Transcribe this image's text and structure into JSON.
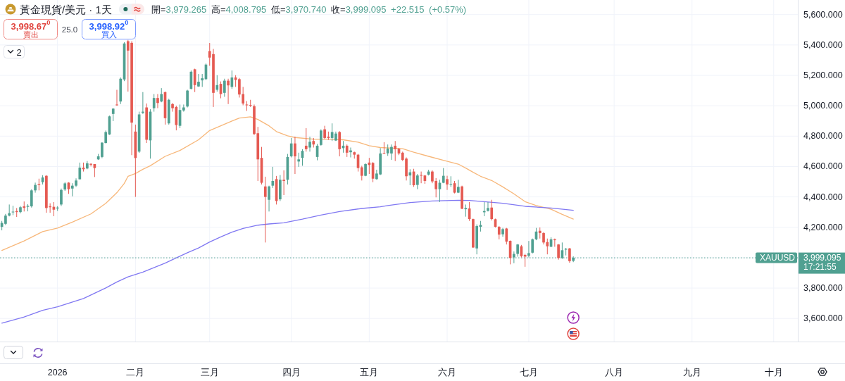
{
  "chart_data": {
    "type": "candlestick",
    "title": "黃金現貨/美元 · 1天",
    "categories": [
      null,
      null,
      null,
      null,
      null,
      null,
      null,
      null,
      null,
      null,
      null,
      null,
      null,
      null,
      null,
      "2026",
      null,
      null,
      null,
      null,
      null,
      null,
      null,
      null,
      null,
      null,
      null,
      null,
      null,
      null,
      null,
      null,
      null,
      null,
      null,
      null,
      "二月",
      null,
      null,
      null,
      null,
      null,
      null,
      null,
      null,
      null,
      null,
      null,
      null,
      null,
      null,
      null,
      null,
      null,
      null,
      null,
      "三月",
      null,
      null,
      null,
      null,
      null,
      null,
      null,
      null,
      null,
      null,
      null,
      null,
      null,
      null,
      null,
      null,
      null,
      null,
      null,
      null,
      null,
      "四月",
      null,
      null,
      null,
      null,
      null,
      null,
      null,
      null,
      null,
      null,
      null,
      null,
      null,
      null,
      null,
      null,
      null,
      null,
      null,
      null,
      "五月",
      null,
      null,
      null,
      null,
      null,
      null,
      null,
      null,
      null,
      null,
      null,
      null,
      null,
      null,
      null,
      null,
      null,
      null,
      null,
      null,
      "六月",
      null,
      null,
      null,
      null,
      null,
      null,
      null,
      null,
      null,
      null,
      null,
      null,
      null,
      null,
      null,
      null,
      null,
      null,
      null,
      null,
      null,
      "七月",
      null,
      null,
      null,
      null,
      null,
      null,
      null,
      null,
      null,
      null,
      null,
      null,
      null,
      null,
      null,
      null,
      null,
      null,
      null,
      null,
      null,
      null,
      "八月",
      null,
      null,
      null,
      null,
      null,
      null,
      null,
      null,
      null,
      null,
      null,
      null,
      null,
      null,
      null,
      null,
      null,
      null,
      null,
      null,
      "九月",
      null,
      null,
      null,
      null,
      null,
      null,
      null,
      null,
      null,
      null,
      null,
      null,
      null,
      null,
      null,
      null,
      null,
      null,
      null,
      null,
      null,
      "十月",
      null,
      null,
      null,
      null,
      null,
      null
    ],
    "ohlc": [
      [
        4203,
        4242,
        4180,
        4229
      ],
      [
        4223,
        4288,
        4215,
        4277
      ],
      [
        4277,
        4350,
        4272,
        4293
      ],
      [
        4300,
        4342,
        4280,
        4303
      ],
      [
        4307,
        4327,
        4268,
        4300
      ],
      [
        4300,
        4340,
        4292,
        4332
      ],
      [
        4338,
        4370,
        4304,
        4328
      ],
      [
        4335,
        4352,
        4305,
        4342
      ],
      [
        4338,
        4450,
        4330,
        4443
      ],
      [
        4443,
        4494,
        4428,
        4479
      ],
      [
        4485,
        4520,
        4443,
        4479
      ],
      [
        4497,
        4543,
        4482,
        4528
      ],
      [
        4539,
        4543,
        4296,
        4327
      ],
      [
        4338,
        4358,
        4296,
        4332
      ],
      [
        4335,
        4366,
        4273,
        4316
      ],
      [
        4324,
        4339,
        4308,
        4330
      ],
      [
        4350,
        4455,
        4340,
        4446
      ],
      [
        4449,
        4497,
        4440,
        4489
      ],
      [
        4494,
        4497,
        4420,
        4451
      ],
      [
        4455,
        4490,
        4404,
        4474
      ],
      [
        4474,
        4522,
        4466,
        4508
      ],
      [
        4516,
        4626,
        4516,
        4593
      ],
      [
        4593,
        4626,
        4567,
        4582
      ],
      [
        4587,
        4636,
        4582,
        4621
      ],
      [
        4618,
        4621,
        4601,
        4612
      ],
      [
        4616,
        4616,
        4531,
        4590
      ],
      [
        4647,
        4683,
        4643,
        4667
      ],
      [
        4663,
        4760,
        4655,
        4757
      ],
      [
        4755,
        4837,
        4752,
        4827
      ],
      [
        4811,
        4935,
        4808,
        4930
      ],
      [
        4946,
        4984,
        4899,
        4981
      ],
      [
        5008,
        5105,
        5000,
        5003
      ],
      [
        5028,
        5186,
        5011,
        5178
      ],
      [
        5173,
        5418,
        5162,
        5410
      ],
      [
        5425,
        5433,
        5093,
        5363
      ],
      [
        5414,
        5425,
        4675,
        4889
      ],
      [
        4830,
        4876,
        4400,
        4656
      ],
      [
        4698,
        4961,
        4690,
        4943
      ],
      [
        4953,
        5090,
        4946,
        4961
      ],
      [
        4989,
        5015,
        4755,
        4776
      ],
      [
        4772,
        4977,
        4652,
        4961
      ],
      [
        4984,
        5077,
        4961,
        5051
      ],
      [
        5051,
        5077,
        4984,
        5018
      ],
      [
        5028,
        5116,
        5023,
        5077
      ],
      [
        5090,
        5093,
        4876,
        4918
      ],
      [
        4884,
        5046,
        4876,
        5039
      ],
      [
        5011,
        5018,
        4961,
        4984
      ],
      [
        4992,
        5000,
        4838,
        4873
      ],
      [
        4868,
        5008,
        4853,
        4972
      ],
      [
        4969,
        5008,
        4961,
        4989
      ],
      [
        4995,
        5105,
        4989,
        5100
      ],
      [
        5111,
        5232,
        5108,
        5224
      ],
      [
        5240,
        5244,
        5090,
        5136
      ],
      [
        5127,
        5209,
        5124,
        5158
      ],
      [
        5167,
        5209,
        5124,
        5181
      ],
      [
        5175,
        5278,
        5170,
        5271
      ],
      [
        5360,
        5413,
        5263,
        5317
      ],
      [
        5340,
        5374,
        4992,
        5085
      ],
      [
        5105,
        5201,
        5093,
        5136
      ],
      [
        5144,
        5160,
        5049,
        5077
      ],
      [
        5085,
        5178,
        5059,
        5165
      ],
      [
        5165,
        5178,
        5011,
        5134
      ],
      [
        5124,
        5232,
        5111,
        5186
      ],
      [
        5186,
        5201,
        5124,
        5170
      ],
      [
        5175,
        5183,
        5054,
        5074
      ],
      [
        5077,
        5124,
        5003,
        5015
      ],
      [
        5008,
        5031,
        4966,
        5003
      ],
      [
        5005,
        5039,
        4992,
        5000
      ],
      [
        4997,
        5008,
        4807,
        4814
      ],
      [
        4819,
        4861,
        4505,
        4647
      ],
      [
        4657,
        4729,
        4482,
        4493
      ],
      [
        4469,
        4533,
        4100,
        4400
      ],
      [
        4381,
        4474,
        4304,
        4469
      ],
      [
        4474,
        4598,
        4459,
        4505
      ],
      [
        4517,
        4538,
        4350,
        4373
      ],
      [
        4384,
        4544,
        4373,
        4513
      ],
      [
        4513,
        4575,
        4412,
        4505
      ],
      [
        4513,
        4683,
        4482,
        4663
      ],
      [
        4667,
        4788,
        4660,
        4752
      ],
      [
        4752,
        4796,
        4551,
        4667
      ],
      [
        4633,
        4691,
        4598,
        4647
      ],
      [
        4657,
        4714,
        4605,
        4703
      ],
      [
        4737,
        4853,
        4698,
        4714
      ],
      [
        4725,
        4796,
        4698,
        4763
      ],
      [
        4768,
        4788,
        4725,
        4745
      ],
      [
        4663,
        4749,
        4641,
        4737
      ],
      [
        4742,
        4845,
        4737,
        4837
      ],
      [
        4845,
        4868,
        4780,
        4788
      ],
      [
        4796,
        4830,
        4775,
        4788
      ],
      [
        4788,
        4884,
        4768,
        4827
      ],
      [
        4771,
        4830,
        4768,
        4817
      ],
      [
        4827,
        4833,
        4667,
        4714
      ],
      [
        4721,
        4768,
        4691,
        4737
      ],
      [
        4737,
        4745,
        4663,
        4691
      ],
      [
        4694,
        4725,
        4660,
        4706
      ],
      [
        4694,
        4698,
        4652,
        4678
      ],
      [
        4678,
        4683,
        4567,
        4590
      ],
      [
        4595,
        4605,
        4508,
        4539
      ],
      [
        4539,
        4621,
        4536,
        4616
      ],
      [
        4626,
        4657,
        4551,
        4610
      ],
      [
        4624,
        4629,
        4497,
        4520
      ],
      [
        4517,
        4579,
        4513,
        4554
      ],
      [
        4548,
        4721,
        4544,
        4686
      ],
      [
        4690,
        4760,
        4683,
        4686
      ],
      [
        4687,
        4745,
        4670,
        4718
      ],
      [
        4686,
        4745,
        4644,
        4729
      ],
      [
        4737,
        4768,
        4636,
        4714
      ],
      [
        4717,
        4722,
        4675,
        4686
      ],
      [
        4691,
        4698,
        4636,
        4644
      ],
      [
        4652,
        4660,
        4508,
        4536
      ],
      [
        4541,
        4582,
        4477,
        4562
      ],
      [
        4567,
        4585,
        4466,
        4477
      ],
      [
        4479,
        4551,
        4451,
        4541
      ],
      [
        4544,
        4567,
        4490,
        4541
      ],
      [
        4541,
        4544,
        4486,
        4505
      ],
      [
        4547,
        4579,
        4541,
        4567
      ],
      [
        4567,
        4575,
        4490,
        4502
      ],
      [
        4505,
        4524,
        4397,
        4451
      ],
      [
        4451,
        4513,
        4366,
        4493
      ],
      [
        4493,
        4590,
        4490,
        4539
      ],
      [
        4517,
        4539,
        4446,
        4482
      ],
      [
        4482,
        4536,
        4466,
        4486
      ],
      [
        4490,
        4505,
        4423,
        4428
      ],
      [
        4428,
        4513,
        4425,
        4466
      ],
      [
        4469,
        4474,
        4319,
        4322
      ],
      [
        4319,
        4350,
        4270,
        4327
      ],
      [
        4324,
        4366,
        4242,
        4254
      ],
      [
        4254,
        4257,
        4064,
        4067
      ],
      [
        4061,
        4219,
        4022,
        4208
      ],
      [
        4203,
        4242,
        4172,
        4216
      ],
      [
        4299,
        4366,
        4273,
        4307
      ],
      [
        4308,
        4366,
        4304,
        4327
      ],
      [
        4330,
        4381,
        4245,
        4254
      ],
      [
        4253,
        4257,
        4199,
        4203
      ],
      [
        4203,
        4208,
        4121,
        4152
      ],
      [
        4154,
        4196,
        4138,
        4188
      ],
      [
        4192,
        4196,
        4087,
        4106
      ],
      [
        4111,
        4113,
        3956,
        3998
      ],
      [
        4002,
        4041,
        3964,
        4025
      ],
      [
        4025,
        4090,
        4007,
        4087
      ],
      [
        4075,
        4084,
        4002,
        4010
      ],
      [
        4018,
        4025,
        3940,
        4007
      ],
      [
        4013,
        4110,
        4002,
        4030
      ],
      [
        4033,
        4126,
        4028,
        4121
      ],
      [
        4121,
        4196,
        4115,
        4172
      ],
      [
        4177,
        4199,
        4126,
        4162
      ],
      [
        4162,
        4168,
        4087,
        4100
      ],
      [
        4103,
        4126,
        4022,
        4075
      ],
      [
        4072,
        4134,
        4069,
        4121
      ],
      [
        4121,
        4126,
        4072,
        4115
      ],
      [
        4087,
        4090,
        3987,
        3998
      ],
      [
        3998,
        4100,
        3992,
        4049
      ],
      [
        4053,
        4064,
        4015,
        4059
      ],
      [
        4061,
        4064,
        3967,
        3977
      ],
      [
        3979.265,
        4008.795,
        3970.74,
        3999.095
      ],
      null,
      null,
      null,
      null,
      null,
      null,
      null,
      null,
      null,
      null,
      null,
      null,
      null,
      null,
      null,
      null,
      null,
      null,
      null,
      null,
      null,
      null,
      null,
      null,
      null,
      null,
      null,
      null,
      null,
      null,
      null,
      null,
      null,
      null,
      null,
      null,
      null,
      null,
      null,
      null,
      null,
      null,
      null,
      null,
      null,
      null,
      null,
      null,
      null,
      null,
      null,
      null,
      null,
      null,
      null,
      null,
      null,
      null,
      null,
      null
    ],
    "colors": [
      "#50a091",
      "#50a091",
      "#50a091",
      "#50a091",
      "#e55a52",
      "#50a091",
      "#e55a52",
      "#50a091",
      "#50a091",
      "#50a091",
      "#e55a52",
      "#50a091",
      "#e55a52",
      "#e55a52",
      "#e55a52",
      "#50a091",
      "#50a091",
      "#50a091",
      "#e55a52",
      "#50a091",
      "#50a091",
      "#50a091",
      "#e55a52",
      "#50a091",
      "#e55a52",
      "#e55a52",
      "#50a091",
      "#50a091",
      "#50a091",
      "#50a091",
      "#50a091",
      "#e55a52",
      "#50a091",
      "#50a091",
      "#e55a52",
      "#e55a52",
      "#e55a52",
      "#50a091",
      "#50a091",
      "#e55a52",
      "#50a091",
      "#50a091",
      "#e55a52",
      "#50a091",
      "#e55a52",
      "#50a091",
      "#e55a52",
      "#e55a52",
      "#50a091",
      "#50a091",
      "#50a091",
      "#50a091",
      "#e55a52",
      "#50a091",
      "#50a091",
      "#50a091",
      "#e55a52",
      "#e55a52",
      "#50a091",
      "#e55a52",
      "#50a091",
      "#e55a52",
      "#50a091",
      "#e55a52",
      "#e55a52",
      "#e55a52",
      "#e55a52",
      "#e55a52",
      "#e55a52",
      "#e55a52",
      "#e55a52",
      "#e55a52",
      "#50a091",
      "#50a091",
      "#e55a52",
      "#50a091",
      "#e55a52",
      "#50a091",
      "#50a091",
      "#e55a52",
      "#50a091",
      "#50a091",
      "#e55a52",
      "#50a091",
      "#e55a52",
      "#50a091",
      "#50a091",
      "#e55a52",
      "#e55a52",
      "#50a091",
      "#50a091",
      "#e55a52",
      "#50a091",
      "#e55a52",
      "#50a091",
      "#e55a52",
      "#e55a52",
      "#e55a52",
      "#50a091",
      "#e55a52",
      "#e55a52",
      "#50a091",
      "#50a091",
      "#e55a52",
      "#50a091",
      "#50a091",
      "#e55a52",
      "#e55a52",
      "#e55a52",
      "#e55a52",
      "#50a091",
      "#e55a52",
      "#50a091",
      "#e55a52",
      "#e55a52",
      "#50a091",
      "#e55a52",
      "#e55a52",
      "#50a091",
      "#50a091",
      "#e55a52",
      "#50a091",
      "#e55a52",
      "#50a091",
      "#e55a52",
      "#50a091",
      "#e55a52",
      "#e55a52",
      "#50a091",
      "#50a091",
      "#50a091",
      "#50a091",
      "#e55a52",
      "#e55a52",
      "#e55a52",
      "#50a091",
      "#e55a52",
      "#e55a52",
      "#50a091",
      "#50a091",
      "#e55a52",
      "#e55a52",
      "#50a091",
      "#50a091",
      "#50a091",
      "#e55a52",
      "#e55a52",
      "#e55a52",
      "#50a091",
      "#e55a52",
      "#e55a52",
      "#50a091",
      "#50a091",
      "#e55a52",
      "#50a091",
      null,
      null,
      null,
      null,
      null,
      null,
      null,
      null,
      null,
      null,
      null,
      null,
      null,
      null,
      null,
      null,
      null,
      null,
      null,
      null,
      null,
      null,
      null,
      null,
      null,
      null,
      null,
      null,
      null,
      null,
      null,
      null,
      null,
      null,
      null,
      null,
      null,
      null,
      null,
      null,
      null,
      null,
      null,
      null,
      null,
      null,
      null,
      null,
      null,
      null,
      null,
      null,
      null,
      null,
      null,
      null,
      null,
      null,
      null,
      null
    ],
    "series": [
      {
        "type": "line",
        "color": "#f7b77a",
        "values": [
          4048,
          null,
          null,
          null,
          null,
          null,
          4110,
          null,
          null,
          null,
          null,
          4172,
          null,
          null,
          null,
          4195,
          null,
          null,
          null,
          4234,
          null,
          null,
          null,
          null,
          4288,
          null,
          null,
          null,
          4358,
          null,
          null,
          4428,
          null,
          4489,
          4536,
          null,
          4554,
          null,
          4582,
          null,
          4605,
          null,
          null,
          null,
          4667,
          null,
          null,
          null,
          4706,
          null,
          null,
          null,
          null,
          4776,
          null,
          null,
          4837,
          null,
          null,
          4868,
          null,
          null,
          4899,
          null,
          4919,
          null,
          null,
          4927,
          null,
          4910,
          null,
          null,
          4868,
          null,
          4830,
          null,
          null,
          4802,
          null,
          4791,
          null,
          null,
          null,
          null,
          4780,
          null,
          null,
          null,
          4780,
          null,
          null,
          null,
          4776,
          null,
          null,
          null,
          4760,
          null,
          null,
          4737,
          null,
          null,
          4725,
          null,
          null,
          null,
          null,
          null,
          4717,
          null,
          null,
          4694,
          null,
          null,
          null,
          4667,
          null,
          null,
          null,
          4641,
          null,
          null,
          null,
          4616,
          null,
          4590,
          null,
          4562,
          null,
          4536,
          null,
          null,
          4508,
          null,
          null,
          4466,
          null,
          null,
          4420,
          null,
          null,
          4369,
          null,
          null,
          4343,
          null,
          null,
          null,
          4319,
          null,
          null,
          4285,
          null,
          null,
          4254,
          null,
          null,
          null,
          null,
          null,
          null,
          null,
          null,
          null,
          null,
          null,
          null,
          null,
          null,
          null,
          null,
          null,
          null,
          null,
          null,
          null,
          null,
          null,
          null,
          null,
          null,
          null,
          null,
          null,
          null,
          null,
          null,
          null,
          null,
          null,
          null,
          null,
          null,
          null,
          null,
          null,
          null,
          null,
          null,
          null,
          null,
          null,
          null,
          null,
          null,
          null,
          null,
          null,
          null,
          null,
          null,
          null,
          null,
          null,
          null
        ]
      },
      {
        "type": "line",
        "color": "#8078f2",
        "values": [
          3569,
          null,
          null,
          null,
          null,
          null,
          3610,
          null,
          null,
          null,
          null,
          3654,
          null,
          null,
          null,
          3677,
          null,
          null,
          null,
          null,
          null,
          null,
          3731,
          null,
          null,
          null,
          null,
          null,
          3801,
          null,
          null,
          3840,
          null,
          null,
          3874,
          null,
          null,
          null,
          3905,
          null,
          null,
          null,
          null,
          null,
          3964,
          null,
          null,
          null,
          null,
          null,
          4033,
          null,
          null,
          4064,
          null,
          null,
          4103,
          null,
          null,
          4137,
          null,
          null,
          4168,
          null,
          null,
          4192,
          null,
          null,
          null,
          4214,
          null,
          null,
          4222,
          null,
          null,
          null,
          4230,
          null,
          null,
          null,
          null,
          4254,
          null,
          null,
          null,
          null,
          4281,
          null,
          null,
          null,
          null,
          4304,
          null,
          null,
          null,
          null,
          null,
          4324,
          null,
          null,
          null,
          null,
          4335,
          null,
          4343,
          null,
          null,
          null,
          null,
          null,
          4363,
          null,
          null,
          null,
          null,
          null,
          4373,
          null,
          null,
          null,
          null,
          null,
          null,
          4378,
          null,
          null,
          4377,
          null,
          null,
          null,
          4369,
          null,
          null,
          null,
          null,
          4358,
          null,
          null,
          null,
          null,
          null,
          4338,
          null,
          null,
          null,
          null,
          null,
          null,
          4327,
          null,
          null,
          null,
          null,
          null,
          4312,
          null,
          null,
          null,
          null,
          null,
          null,
          null,
          null,
          null,
          null,
          null,
          null,
          null,
          null,
          null,
          null,
          null,
          null,
          null,
          null,
          null,
          null,
          null,
          null,
          null,
          null,
          null,
          null,
          null,
          null,
          null,
          null,
          null,
          null,
          null,
          null,
          null,
          null,
          null,
          null,
          null,
          null,
          null,
          null,
          null,
          null,
          null,
          null,
          null,
          null,
          null,
          null,
          null,
          null,
          null,
          null,
          null,
          null,
          null,
          null
        ]
      }
    ],
    "ylim": [
      3448,
      5696
    ],
    "yticks": [
      {
        "value": 3600,
        "label": "3,600.000"
      },
      {
        "value": 3800,
        "label": "3,800.000"
      },
      {
        "value": 4000,
        "label": null
      },
      {
        "value": 4200,
        "label": "4,200.000"
      },
      {
        "value": 4400,
        "label": "4,400.000"
      },
      {
        "value": 4600,
        "label": "4,600.000"
      },
      {
        "value": 4800,
        "label": "4,800.000"
      },
      {
        "value": 5000,
        "label": "5,000.000"
      },
      {
        "value": 5200,
        "label": "5,200.000"
      },
      {
        "value": 5400,
        "label": "5,400.000"
      },
      {
        "value": 5600,
        "label": "5,600.000"
      }
    ],
    "grid": true,
    "ref_lines": [
      {
        "axis": "y",
        "value": 3999.095,
        "label": "XAUUSD",
        "color": "#50a091",
        "line_style": "dotted"
      }
    ],
    "annotations": [
      "開=3,979.265 高=4,008.795 低=3,970.740 收=3,999.095 +22.515 (+0.57%)",
      "3,998.67$^{0}$",
      "賣出",
      "25.0",
      "3,998.92$^{0}$",
      "買入",
      "2",
      "3,999.095\n17:21:55"
    ]
  }
}
